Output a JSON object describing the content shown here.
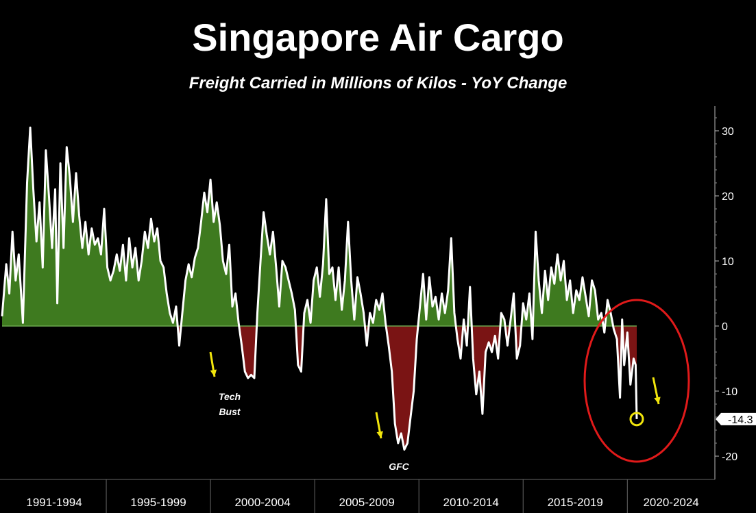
{
  "chart_data": {
    "type": "area",
    "title": "Singapore Air Cargo",
    "subtitle": "Freight Carried in Millions of Kilos - YoY Change",
    "xlabel": "",
    "ylabel": "",
    "y_axis_side": "right",
    "ylim": [
      -22,
      34
    ],
    "yticks": [
      30,
      20,
      10,
      0,
      -10,
      -20
    ],
    "period_labels": [
      "1991-1994",
      "1995-1999",
      "2000-2004",
      "2005-2009",
      "2010-2014",
      "2015-2019",
      "2020-2024"
    ],
    "period_boundaries": [
      "1995",
      "2000",
      "2005",
      "2010",
      "2015",
      "2020"
    ],
    "last_value_label": "-14.3",
    "positive_fill": "#3e7a1f",
    "negative_fill": "#7a1414",
    "line_color": "#ffffff",
    "annotation_arrow_color": "#f2e60c",
    "highlight_circle_color": "#e01a1a",
    "annotations": [
      {
        "text": [
          "Tech",
          "Bust"
        ],
        "x": 2001.6
      },
      {
        "text": [
          "GFC"
        ],
        "x": 2009.2
      }
    ],
    "series": [
      {
        "points": [
          [
            1990.0,
            1.5
          ],
          [
            1990.2,
            9.5
          ],
          [
            1990.35,
            5
          ],
          [
            1990.5,
            14.5
          ],
          [
            1990.65,
            7
          ],
          [
            1990.8,
            11
          ],
          [
            1991.0,
            0.5
          ],
          [
            1991.2,
            22
          ],
          [
            1991.35,
            30.5
          ],
          [
            1991.5,
            21
          ],
          [
            1991.65,
            13
          ],
          [
            1991.8,
            19
          ],
          [
            1991.95,
            9
          ],
          [
            1992.1,
            27
          ],
          [
            1992.25,
            20
          ],
          [
            1992.4,
            12
          ],
          [
            1992.55,
            21
          ],
          [
            1992.65,
            3.5
          ],
          [
            1992.8,
            25
          ],
          [
            1992.95,
            12
          ],
          [
            1993.1,
            27.5
          ],
          [
            1993.25,
            23
          ],
          [
            1993.4,
            16
          ],
          [
            1993.55,
            23.5
          ],
          [
            1993.7,
            17
          ],
          [
            1993.85,
            12
          ],
          [
            1994.0,
            16
          ],
          [
            1994.15,
            11
          ],
          [
            1994.3,
            15
          ],
          [
            1994.45,
            12.5
          ],
          [
            1994.6,
            13.5
          ],
          [
            1994.75,
            11
          ],
          [
            1994.9,
            18
          ],
          [
            1995.05,
            9
          ],
          [
            1995.2,
            7
          ],
          [
            1995.35,
            8.5
          ],
          [
            1995.5,
            11
          ],
          [
            1995.65,
            8.5
          ],
          [
            1995.8,
            12.5
          ],
          [
            1995.95,
            7
          ],
          [
            1996.1,
            13.5
          ],
          [
            1996.25,
            9
          ],
          [
            1996.4,
            12
          ],
          [
            1996.55,
            7
          ],
          [
            1996.7,
            10
          ],
          [
            1996.85,
            14.5
          ],
          [
            1997.0,
            12
          ],
          [
            1997.15,
            16.5
          ],
          [
            1997.3,
            13
          ],
          [
            1997.45,
            15
          ],
          [
            1997.6,
            10
          ],
          [
            1997.75,
            9
          ],
          [
            1997.9,
            5
          ],
          [
            1998.05,
            2
          ],
          [
            1998.2,
            0.5
          ],
          [
            1998.35,
            3
          ],
          [
            1998.5,
            -3
          ],
          [
            1998.65,
            2
          ],
          [
            1998.8,
            7
          ],
          [
            1998.95,
            9.5
          ],
          [
            1999.1,
            7.5
          ],
          [
            1999.25,
            10.5
          ],
          [
            1999.4,
            12
          ],
          [
            1999.55,
            16
          ],
          [
            1999.7,
            20.5
          ],
          [
            1999.85,
            17.5
          ],
          [
            2000.0,
            22.5
          ],
          [
            2000.15,
            16
          ],
          [
            2000.3,
            19
          ],
          [
            2000.45,
            15.5
          ],
          [
            2000.6,
            10
          ],
          [
            2000.75,
            8
          ],
          [
            2000.9,
            12.5
          ],
          [
            2001.05,
            3
          ],
          [
            2001.2,
            5
          ],
          [
            2001.35,
            0.5
          ],
          [
            2001.5,
            -3
          ],
          [
            2001.65,
            -7
          ],
          [
            2001.8,
            -8
          ],
          [
            2001.95,
            -7.5
          ],
          [
            2002.1,
            -8
          ],
          [
            2002.25,
            2
          ],
          [
            2002.4,
            10
          ],
          [
            2002.55,
            17.5
          ],
          [
            2002.7,
            14
          ],
          [
            2002.85,
            11
          ],
          [
            2003.0,
            14.5
          ],
          [
            2003.15,
            9
          ],
          [
            2003.3,
            3
          ],
          [
            2003.45,
            10
          ],
          [
            2003.6,
            9
          ],
          [
            2003.75,
            7
          ],
          [
            2003.9,
            5
          ],
          [
            2004.05,
            2.5
          ],
          [
            2004.2,
            -6
          ],
          [
            2004.35,
            -7
          ],
          [
            2004.5,
            2
          ],
          [
            2004.65,
            4
          ],
          [
            2004.8,
            0.5
          ],
          [
            2004.95,
            7
          ],
          [
            2005.1,
            9
          ],
          [
            2005.25,
            4.5
          ],
          [
            2005.4,
            9.5
          ],
          [
            2005.55,
            19.5
          ],
          [
            2005.7,
            8
          ],
          [
            2005.85,
            9
          ],
          [
            2006.0,
            4
          ],
          [
            2006.15,
            9
          ],
          [
            2006.3,
            2.5
          ],
          [
            2006.45,
            7
          ],
          [
            2006.6,
            16
          ],
          [
            2006.75,
            7
          ],
          [
            2006.9,
            1
          ],
          [
            2007.05,
            7.5
          ],
          [
            2007.2,
            5
          ],
          [
            2007.35,
            2
          ],
          [
            2007.5,
            -3
          ],
          [
            2007.65,
            2
          ],
          [
            2007.8,
            0.5
          ],
          [
            2007.95,
            4
          ],
          [
            2008.1,
            2.5
          ],
          [
            2008.25,
            5
          ],
          [
            2008.4,
            0.5
          ],
          [
            2008.55,
            -3
          ],
          [
            2008.7,
            -7
          ],
          [
            2008.85,
            -15
          ],
          [
            2009.0,
            -18
          ],
          [
            2009.15,
            -16.5
          ],
          [
            2009.3,
            -19
          ],
          [
            2009.45,
            -18
          ],
          [
            2009.6,
            -14
          ],
          [
            2009.75,
            -10
          ],
          [
            2009.9,
            -2
          ],
          [
            2010.05,
            3
          ],
          [
            2010.2,
            8
          ],
          [
            2010.35,
            1
          ],
          [
            2010.5,
            7.5
          ],
          [
            2010.65,
            3
          ],
          [
            2010.8,
            4.5
          ],
          [
            2010.95,
            1
          ],
          [
            2011.1,
            5
          ],
          [
            2011.25,
            2
          ],
          [
            2011.4,
            5.5
          ],
          [
            2011.55,
            13.5
          ],
          [
            2011.7,
            2
          ],
          [
            2011.85,
            -2
          ],
          [
            2012.0,
            -5
          ],
          [
            2012.15,
            1
          ],
          [
            2012.3,
            -3
          ],
          [
            2012.45,
            6
          ],
          [
            2012.6,
            -5
          ],
          [
            2012.75,
            -10.5
          ],
          [
            2012.9,
            -7
          ],
          [
            2013.05,
            -13.5
          ],
          [
            2013.2,
            -4
          ],
          [
            2013.35,
            -2.5
          ],
          [
            2013.5,
            -4
          ],
          [
            2013.65,
            -1.5
          ],
          [
            2013.8,
            -5
          ],
          [
            2013.95,
            2
          ],
          [
            2014.1,
            1
          ],
          [
            2014.25,
            -3
          ],
          [
            2014.4,
            1
          ],
          [
            2014.55,
            5
          ],
          [
            2014.7,
            -5
          ],
          [
            2014.85,
            -3
          ],
          [
            2015.0,
            3.5
          ],
          [
            2015.15,
            1
          ],
          [
            2015.3,
            5
          ],
          [
            2015.45,
            -2
          ],
          [
            2015.6,
            14.5
          ],
          [
            2015.75,
            7
          ],
          [
            2015.9,
            2
          ],
          [
            2016.05,
            8.5
          ],
          [
            2016.2,
            4
          ],
          [
            2016.35,
            9
          ],
          [
            2016.5,
            6.5
          ],
          [
            2016.65,
            11
          ],
          [
            2016.8,
            7
          ],
          [
            2016.95,
            10
          ],
          [
            2017.1,
            4
          ],
          [
            2017.25,
            7
          ],
          [
            2017.4,
            2
          ],
          [
            2017.55,
            5.5
          ],
          [
            2017.7,
            4
          ],
          [
            2017.85,
            7.5
          ],
          [
            2018.0,
            4.5
          ],
          [
            2018.15,
            1.5
          ],
          [
            2018.3,
            7
          ],
          [
            2018.45,
            5.5
          ],
          [
            2018.6,
            1
          ],
          [
            2018.75,
            2
          ],
          [
            2018.9,
            -1
          ],
          [
            2019.05,
            4
          ],
          [
            2019.2,
            2
          ],
          [
            2019.35,
            -0.5
          ],
          [
            2019.5,
            -2
          ],
          [
            2019.65,
            -11
          ],
          [
            2019.75,
            1
          ],
          [
            2019.85,
            -6
          ],
          [
            2020.0,
            -1
          ],
          [
            2020.15,
            -9
          ],
          [
            2020.3,
            -5
          ],
          [
            2020.4,
            -6
          ],
          [
            2020.45,
            -14.3
          ]
        ]
      }
    ]
  }
}
